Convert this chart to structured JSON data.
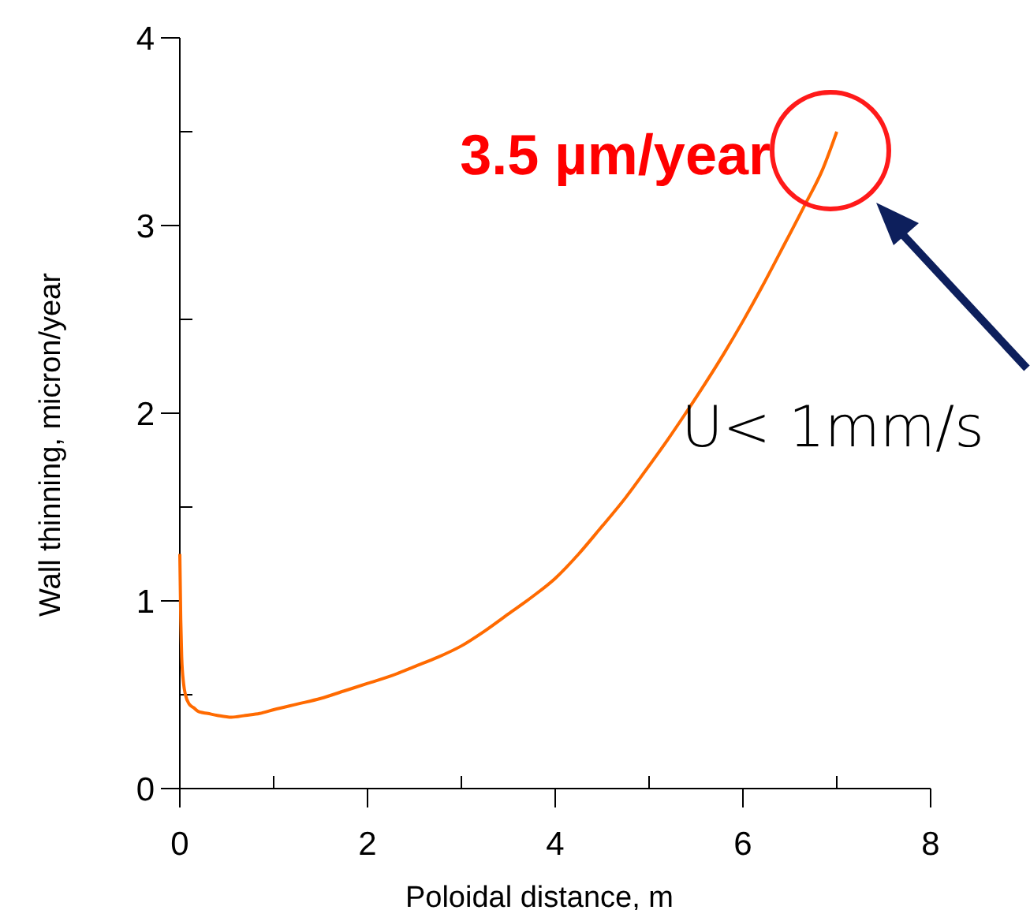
{
  "chart_data": {
    "type": "line",
    "xlabel": "Poloidal distance, m",
    "ylabel": "Wall thinning, micron/year",
    "xlim": [
      0,
      8
    ],
    "ylim": [
      0,
      4
    ],
    "xticks": [
      0,
      {
        "value": 1,
        "label": null
      },
      2,
      {
        "value": 3,
        "label": null
      },
      4,
      {
        "value": 5,
        "label": null
      },
      6,
      {
        "value": 7,
        "label": null
      },
      8
    ],
    "yticks": [
      0,
      {
        "value": 0.5,
        "label": null
      },
      1,
      {
        "value": 1.5,
        "label": null
      },
      2,
      {
        "value": 2.5,
        "label": null
      },
      3,
      {
        "value": 3.5,
        "label": null
      },
      4
    ],
    "grid": false,
    "marker": "none",
    "line_style": "solid",
    "series": [
      {
        "color": "#ff6a00",
        "x": [
          0,
          0.01,
          0.02,
          0.04,
          0.06,
          0.1,
          0.15,
          0.2,
          0.3,
          0.4,
          0.55,
          0.7,
          0.85,
          1,
          1.25,
          1.5,
          1.75,
          2,
          2.25,
          2.5,
          2.75,
          3,
          3.25,
          3.5,
          3.75,
          4,
          4.25,
          4.47,
          4.75,
          5,
          5.2,
          5.39,
          5.6,
          5.8,
          6,
          6.2,
          6.4,
          6.66,
          6.85,
          7
        ],
        "values": [
          1.25,
          0.9,
          0.7,
          0.56,
          0.5,
          0.45,
          0.43,
          0.41,
          0.4,
          0.39,
          0.38,
          0.39,
          0.4,
          0.42,
          0.45,
          0.48,
          0.52,
          0.56,
          0.6,
          0.65,
          0.7,
          0.76,
          0.84,
          0.93,
          1.02,
          1.12,
          1.25,
          1.38,
          1.55,
          1.72,
          1.86,
          2,
          2.16,
          2.32,
          2.49,
          2.67,
          2.86,
          3.11,
          3.3,
          3.5
        ]
      }
    ],
    "annotations": [
      {
        "text": "3.5 µm/year",
        "x": 7,
        "y": 3.5
      },
      "U< 1mm/s"
    ]
  }
}
